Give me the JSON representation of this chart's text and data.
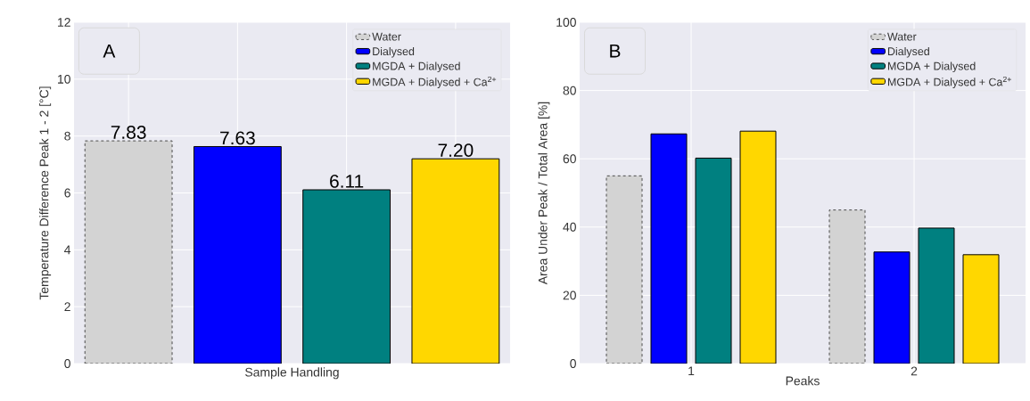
{
  "chart_data": [
    {
      "type": "bar",
      "categories": [
        null,
        null,
        null,
        null
      ],
      "xlabel": "Sample Handling",
      "ylabel": "Temperature Difference Peak 1 - 2 [°C]",
      "ylim": [
        0,
        12
      ],
      "yticks": [
        0,
        2,
        4,
        6,
        8,
        10,
        12
      ],
      "grid": true,
      "legend": "top right",
      "annotations": [
        "A"
      ],
      "series": [
        {
          "name": "Water",
          "color": "#d3d3d3",
          "line_style": "dashed",
          "values": [
            7.83,
            null,
            null,
            null
          ],
          "value_labels": [
            "7.83",
            null,
            null,
            null
          ]
        },
        {
          "name": "Dialysed",
          "color": "#0000ff",
          "values": [
            null,
            7.63,
            null,
            null
          ],
          "value_labels": [
            null,
            "7.63",
            null,
            null
          ]
        },
        {
          "name": "MGDA + Dialysed",
          "color": "#008080",
          "values": [
            null,
            null,
            6.11,
            null
          ],
          "value_labels": [
            null,
            null,
            "6.11",
            null
          ]
        },
        {
          "name": "MGDA + Dialysed + Ca$^{2+}$",
          "color": "#ffd700",
          "values": [
            null,
            null,
            null,
            7.2
          ],
          "value_labels": [
            null,
            null,
            null,
            "7.20"
          ]
        }
      ]
    },
    {
      "type": "bar",
      "categories": [
        "1",
        "2"
      ],
      "xlabel": "Peaks",
      "ylabel": "Area Under Peak / Total Area [%]",
      "ylim": [
        0,
        100
      ],
      "yticks": [
        0,
        20,
        40,
        60,
        80,
        100
      ],
      "grid": true,
      "legend": "top right",
      "annotations": [
        "B"
      ],
      "series": [
        {
          "name": "Water",
          "color": "#d3d3d3",
          "line_style": "dashed",
          "values": [
            55.0,
            45.0
          ]
        },
        {
          "name": "Dialysed",
          "color": "#0000ff",
          "values": [
            67.3,
            32.7
          ]
        },
        {
          "name": "MGDA + Dialysed",
          "color": "#008080",
          "values": [
            60.2,
            39.7
          ]
        },
        {
          "name": "MGDA + Dialysed + Ca$^{2+}$",
          "color": "#ffd700",
          "values": [
            68.1,
            31.9
          ]
        }
      ]
    }
  ]
}
